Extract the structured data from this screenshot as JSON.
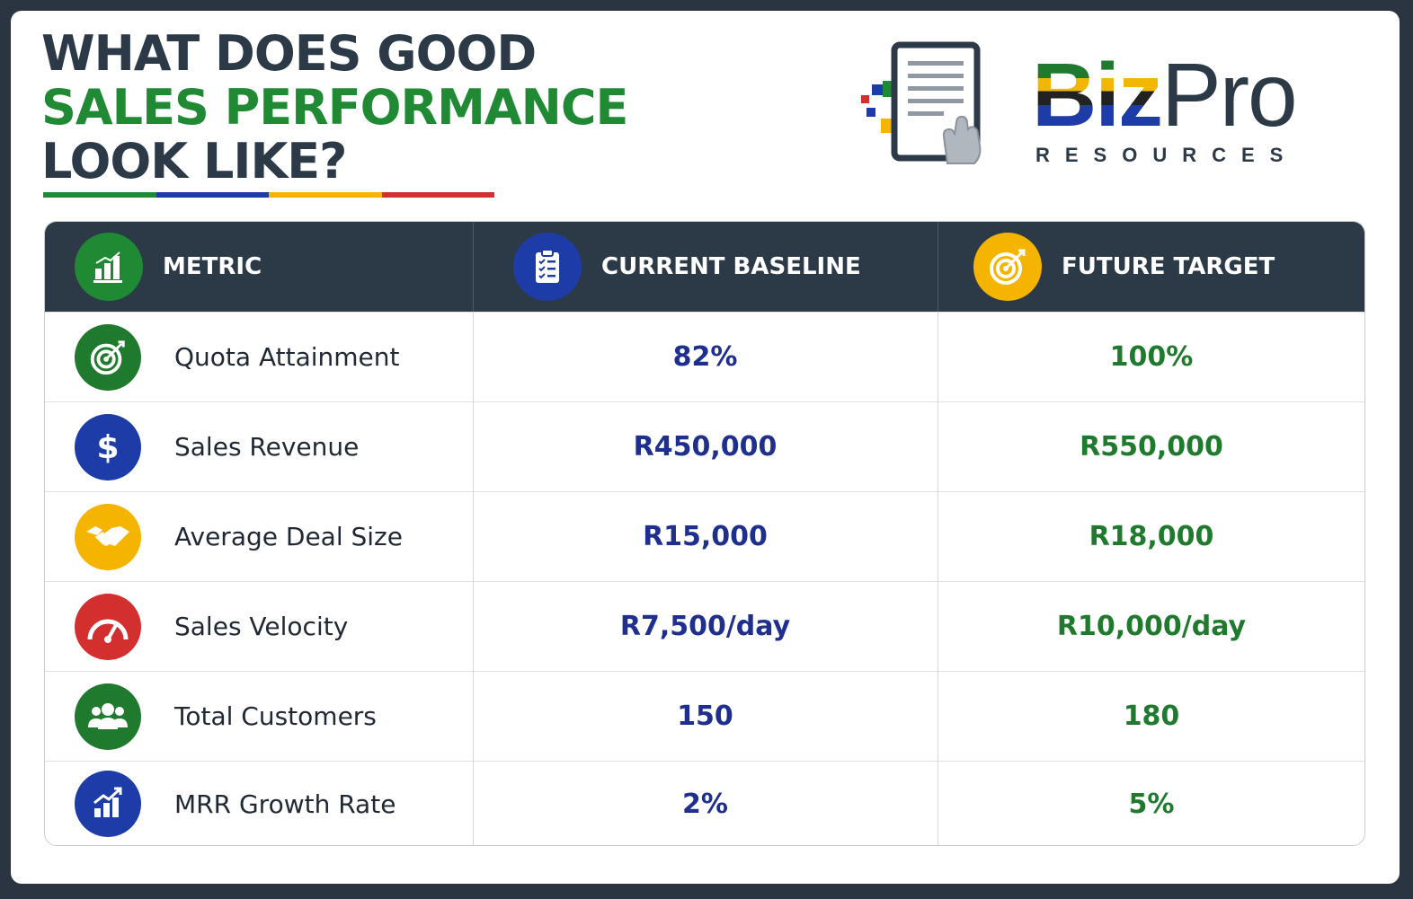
{
  "title": {
    "line1": "WHAT DOES GOOD",
    "line2": "SALES PERFORMANCE",
    "line3": "LOOK LIKE?"
  },
  "brand": {
    "name_part1": "Biz",
    "name_part2": "Pro",
    "subtitle": "RESOURCES"
  },
  "colors": {
    "dark": "#2c3a48",
    "green": "#1f7a2e",
    "blue": "#1e2f8e",
    "yellow": "#f4b400",
    "red": "#d32f2f"
  },
  "table": {
    "headers": [
      {
        "label": "METRIC",
        "icon": "bar-chart-icon"
      },
      {
        "label": "CURRENT BASELINE",
        "icon": "clipboard-checklist-icon"
      },
      {
        "label": "FUTURE TARGET",
        "icon": "target-icon"
      }
    ],
    "rows": [
      {
        "metric": "Quota Attainment",
        "icon": "target-icon",
        "baseline": "82%",
        "target": "100%"
      },
      {
        "metric": "Sales Revenue",
        "icon": "dollar-icon",
        "baseline": "R450,000",
        "target": "R550,000"
      },
      {
        "metric": "Average Deal Size",
        "icon": "handshake-icon",
        "baseline": "R15,000",
        "target": "R18,000"
      },
      {
        "metric": "Sales Velocity",
        "icon": "speedometer-icon",
        "baseline": "R7,500/day",
        "target": "R10,000/day"
      },
      {
        "metric": "Total Customers",
        "icon": "customers-icon",
        "baseline": "150",
        "target": "180"
      },
      {
        "metric": "MRR Growth Rate",
        "icon": "growth-chart-icon",
        "baseline": "2%",
        "target": "5%"
      }
    ]
  }
}
